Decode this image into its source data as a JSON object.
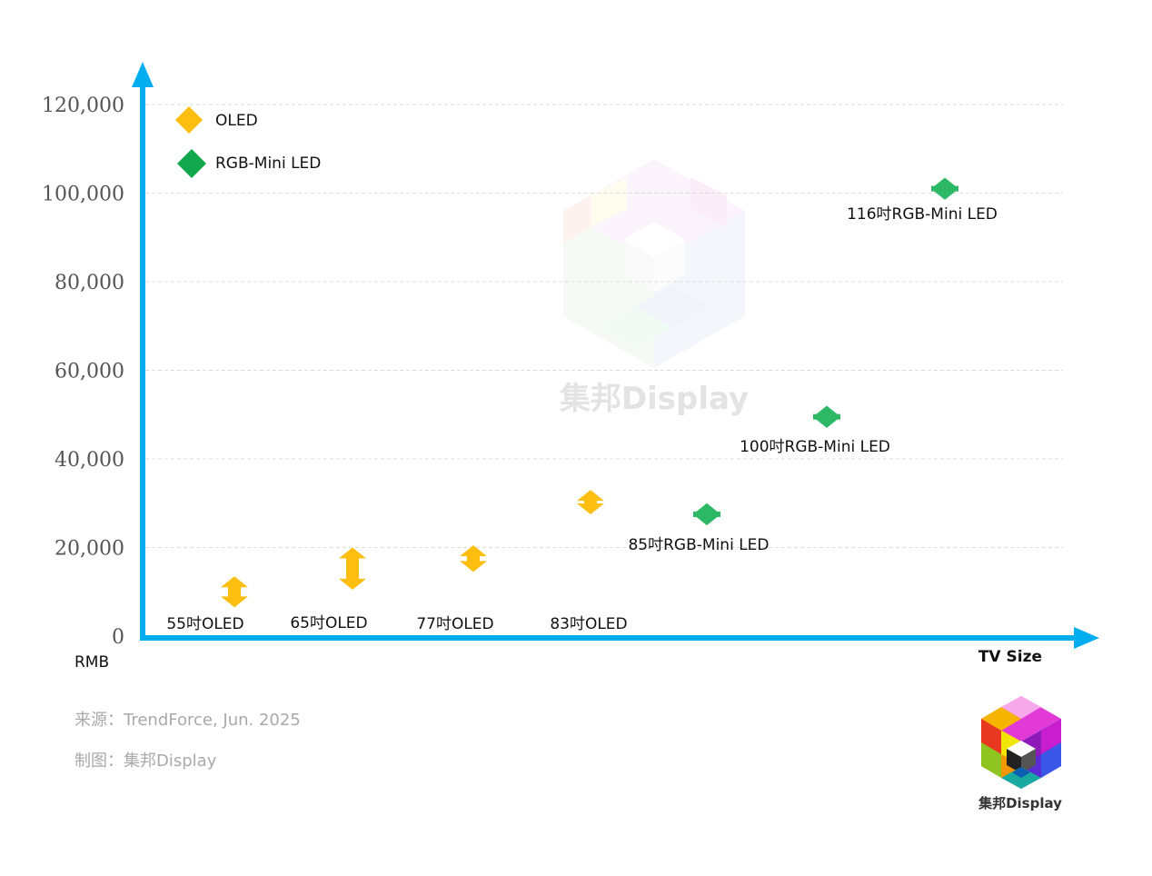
{
  "chart_data": {
    "type": "scatter",
    "ylim": [
      0,
      120000
    ],
    "yticks": [
      "0",
      "20,000",
      "40,000",
      "60,000",
      "80,000",
      "100,000",
      "120,000"
    ],
    "ytick_values": [
      0,
      20000,
      40000,
      60000,
      80000,
      100000,
      120000
    ],
    "ylabel": "RMB",
    "xlabel": "TV Size",
    "grid": true,
    "legend_position": "top-left",
    "series": [
      {
        "name": "OLED",
        "color": "#FDBE10",
        "points": [
          {
            "label": "55吋OLED",
            "low": 6500,
            "high": 13500
          },
          {
            "label": "65吋OLED",
            "low": 10500,
            "high": 20000
          },
          {
            "label": "77吋OLED",
            "low": 14500,
            "high": 20500
          },
          {
            "label": "83吋OLED",
            "low": 27500,
            "high": 33000
          }
        ]
      },
      {
        "name": "RGB-Mini LED",
        "color": "#2DB866",
        "points": [
          {
            "label": "85吋RGB-Mini LED",
            "low": 25000,
            "high": 30000
          },
          {
            "label": "100吋RGB-Mini LED",
            "low": 47000,
            "high": 52000
          },
          {
            "label": "116吋RGB-Mini LED",
            "low": 98500,
            "high": 103500
          }
        ]
      }
    ]
  },
  "axis_color": "#00AEEF",
  "watermark_text": "集邦Display",
  "footer": {
    "source": "来源：TrendForce, Jun. 2025",
    "made_by": "制图：集邦Display"
  },
  "logo_name": "集邦Display"
}
